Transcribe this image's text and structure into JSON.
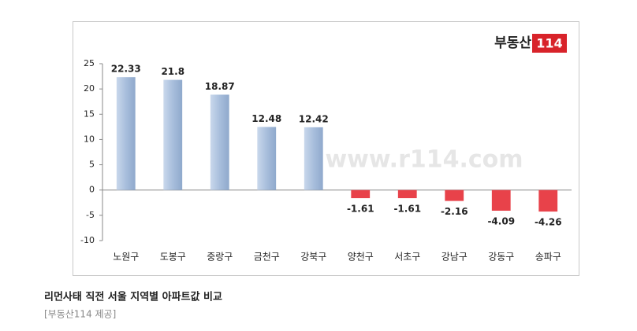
{
  "chart_data": {
    "type": "bar",
    "title": "리먼사태 직전 서울 지역별 아파트값 비교",
    "source": "[부동산114 제공]",
    "logo_name": "부동산",
    "logo_number": "114",
    "watermark": "www.r114.com",
    "categories": [
      "노원구",
      "도봉구",
      "중랑구",
      "금천구",
      "강북구",
      "양천구",
      "서초구",
      "강남구",
      "강동구",
      "송파구"
    ],
    "values": [
      22.33,
      21.8,
      18.87,
      12.48,
      12.42,
      -1.61,
      -1.61,
      -2.16,
      -4.09,
      -4.26
    ],
    "positive_color": "#a8bedc",
    "negative_color": "#e8424a",
    "ylim": [
      -10,
      25
    ],
    "yticks": [
      -10,
      -5,
      0,
      5,
      10,
      15,
      20,
      25
    ]
  }
}
